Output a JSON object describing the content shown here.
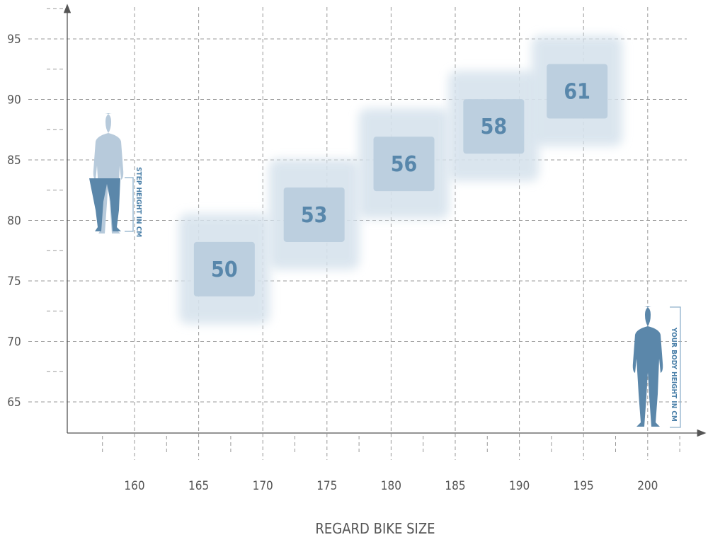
{
  "chart_data": {
    "type": "scatter",
    "title": "",
    "xlabel": "REGARD BIKE SIZE",
    "ylabel": "",
    "xlim": [
      155,
      203
    ],
    "ylim": [
      62.5,
      97
    ],
    "xticks": [
      160,
      165,
      170,
      175,
      180,
      185,
      190,
      195,
      200
    ],
    "yticks": [
      65,
      70,
      75,
      80,
      85,
      90,
      95
    ],
    "grid": true,
    "points": [
      {
        "x": 167,
        "y": 76,
        "label": "50"
      },
      {
        "x": 174,
        "y": 80.5,
        "label": "53"
      },
      {
        "x": 181,
        "y": 84.7,
        "label": "56"
      },
      {
        "x": 188,
        "y": 87.8,
        "label": "58"
      },
      {
        "x": 194.5,
        "y": 90.7,
        "label": "61"
      }
    ],
    "annotations": {
      "step_height": "STEP HEIGHT IN CM",
      "body_height": "YOUR BODY HEIGHT IN CM"
    },
    "colors": {
      "box": "#bccfdf",
      "glow": "#d7e3ed",
      "text": "#5887ab",
      "figure_dark": "#5b87aa",
      "figure_light": "#b7cadb"
    }
  }
}
